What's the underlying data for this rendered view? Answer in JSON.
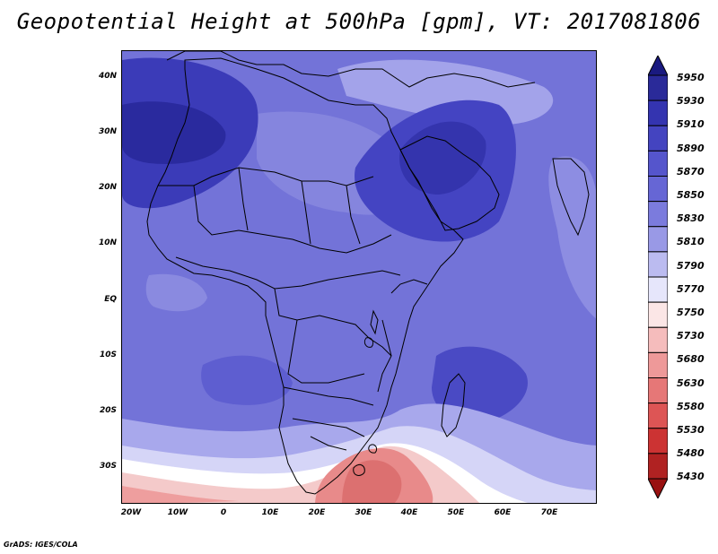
{
  "map": {
    "title": "Geopotential Height at 500hPa [gpm], VT: 2017081806",
    "credit": "GrADS: IGES/COLA",
    "lat_ticks": [
      "40N",
      "30N",
      "20N",
      "10N",
      "EQ",
      "10S",
      "20S",
      "30S"
    ],
    "lon_ticks": [
      "20W",
      "10W",
      "0",
      "10E",
      "20E",
      "30E",
      "40E",
      "50E",
      "60E",
      "70E"
    ],
    "colorbar": {
      "labels": [
        "5950",
        "5930",
        "5910",
        "5890",
        "5870",
        "5850",
        "5830",
        "5810",
        "5790",
        "5770",
        "5750",
        "5730",
        "5680",
        "5630",
        "5580",
        "5530",
        "5480",
        "5430"
      ],
      "colors": [
        "#1a1a80",
        "#2a2a99",
        "#3434b0",
        "#4444c0",
        "#5555cc",
        "#6666d5",
        "#7b7bdd",
        "#9999e6",
        "#bbbbf0",
        "#e6e6fb",
        "#fbe6e6",
        "#f5bcbc",
        "#ee9999",
        "#e67777",
        "#dd5555",
        "#cc3333",
        "#b02222",
        "#991111"
      ]
    }
  }
}
